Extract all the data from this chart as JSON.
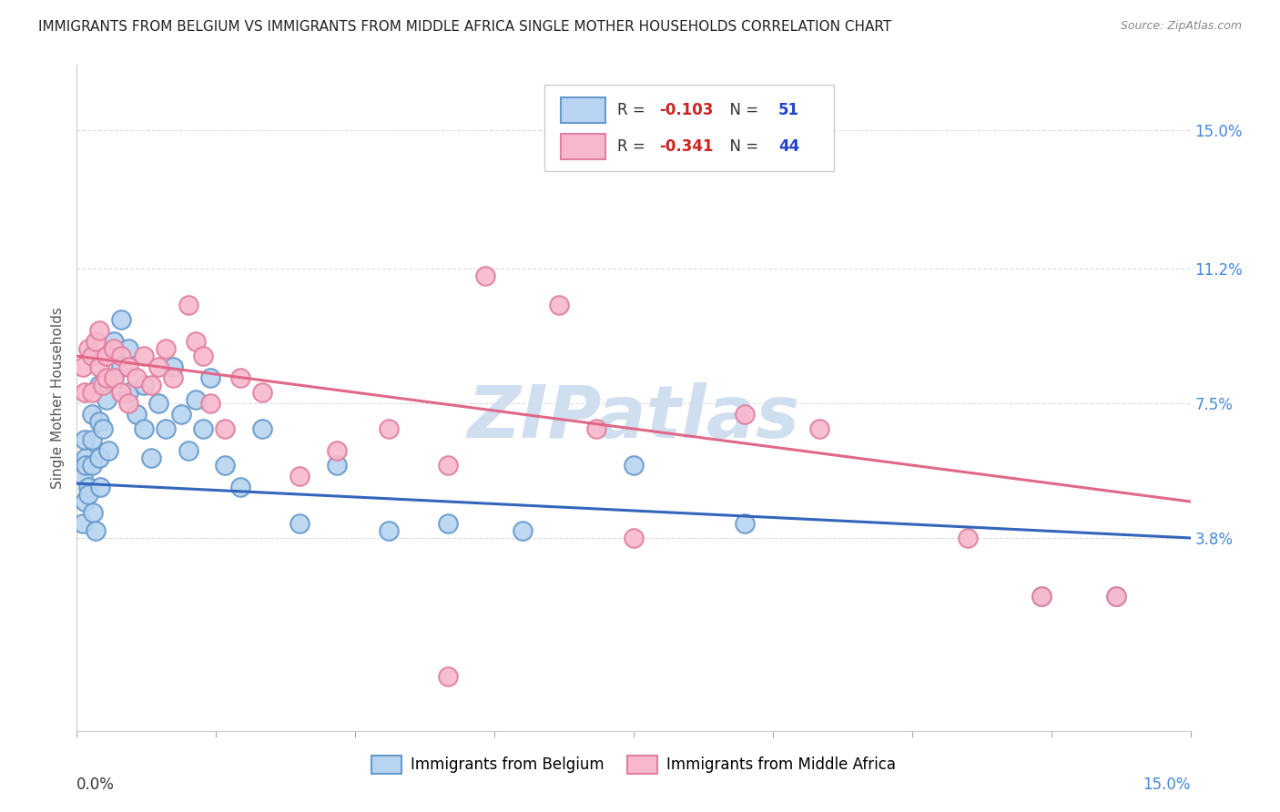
{
  "title": "IMMIGRANTS FROM BELGIUM VS IMMIGRANTS FROM MIDDLE AFRICA SINGLE MOTHER HOUSEHOLDS CORRELATION CHART",
  "source": "Source: ZipAtlas.com",
  "ylabel": "Single Mother Households",
  "ytick_values": [
    0.038,
    0.075,
    0.112,
    0.15
  ],
  "ytick_labels": [
    "3.8%",
    "7.5%",
    "11.2%",
    "15.0%"
  ],
  "xmin": 0.0,
  "xmax": 0.15,
  "ymin": -0.015,
  "ymax": 0.168,
  "bel_color": "#b8d4f0",
  "bel_edge": "#6699cc",
  "afr_color": "#f8b8cc",
  "afr_edge": "#e080a0",
  "bel_line_color": "#3366bb",
  "afr_line_color": "#e06888",
  "bel_line_y0": 0.053,
  "bel_line_y1": 0.038,
  "afr_line_y0": 0.088,
  "afr_line_y1": 0.048,
  "grid_color": "#dddddd",
  "watermark_color": "#d0dff0",
  "watermark_text": "ZIPatlas",
  "title_fontsize": 11,
  "source_fontsize": 9,
  "tick_fontsize": 12,
  "ylabel_fontsize": 11,
  "legend_fontsize": 12,
  "bel_x": [
    0.0008,
    0.001,
    0.0012,
    0.0015,
    0.0008,
    0.001,
    0.0012,
    0.0015,
    0.002,
    0.002,
    0.002,
    0.0022,
    0.0025,
    0.003,
    0.003,
    0.003,
    0.0032,
    0.0035,
    0.004,
    0.004,
    0.0042,
    0.005,
    0.005,
    0.006,
    0.006,
    0.007,
    0.007,
    0.008,
    0.009,
    0.009,
    0.01,
    0.011,
    0.012,
    0.013,
    0.014,
    0.015,
    0.016,
    0.017,
    0.018,
    0.02,
    0.022,
    0.025,
    0.03,
    0.035,
    0.042,
    0.05,
    0.06,
    0.075,
    0.09,
    0.13,
    0.14
  ],
  "bel_y": [
    0.055,
    0.048,
    0.06,
    0.052,
    0.042,
    0.065,
    0.058,
    0.05,
    0.072,
    0.065,
    0.058,
    0.045,
    0.04,
    0.08,
    0.07,
    0.06,
    0.052,
    0.068,
    0.088,
    0.076,
    0.062,
    0.092,
    0.082,
    0.098,
    0.085,
    0.09,
    0.078,
    0.072,
    0.08,
    0.068,
    0.06,
    0.075,
    0.068,
    0.085,
    0.072,
    0.062,
    0.076,
    0.068,
    0.082,
    0.058,
    0.052,
    0.068,
    0.042,
    0.058,
    0.04,
    0.042,
    0.04,
    0.058,
    0.042,
    0.022,
    0.022
  ],
  "afr_x": [
    0.0008,
    0.001,
    0.0015,
    0.002,
    0.002,
    0.0025,
    0.003,
    0.003,
    0.0035,
    0.004,
    0.004,
    0.005,
    0.005,
    0.006,
    0.006,
    0.007,
    0.007,
    0.008,
    0.009,
    0.01,
    0.011,
    0.012,
    0.013,
    0.015,
    0.016,
    0.017,
    0.018,
    0.02,
    0.022,
    0.025,
    0.03,
    0.035,
    0.042,
    0.05,
    0.055,
    0.065,
    0.07,
    0.075,
    0.09,
    0.1,
    0.12,
    0.13,
    0.14,
    0.05
  ],
  "afr_y": [
    0.085,
    0.078,
    0.09,
    0.088,
    0.078,
    0.092,
    0.095,
    0.085,
    0.08,
    0.088,
    0.082,
    0.09,
    0.082,
    0.088,
    0.078,
    0.085,
    0.075,
    0.082,
    0.088,
    0.08,
    0.085,
    0.09,
    0.082,
    0.102,
    0.092,
    0.088,
    0.075,
    0.068,
    0.082,
    0.078,
    0.055,
    0.062,
    0.068,
    0.058,
    0.11,
    0.102,
    0.068,
    0.038,
    0.072,
    0.068,
    0.038,
    0.022,
    0.022,
    0.0
  ]
}
